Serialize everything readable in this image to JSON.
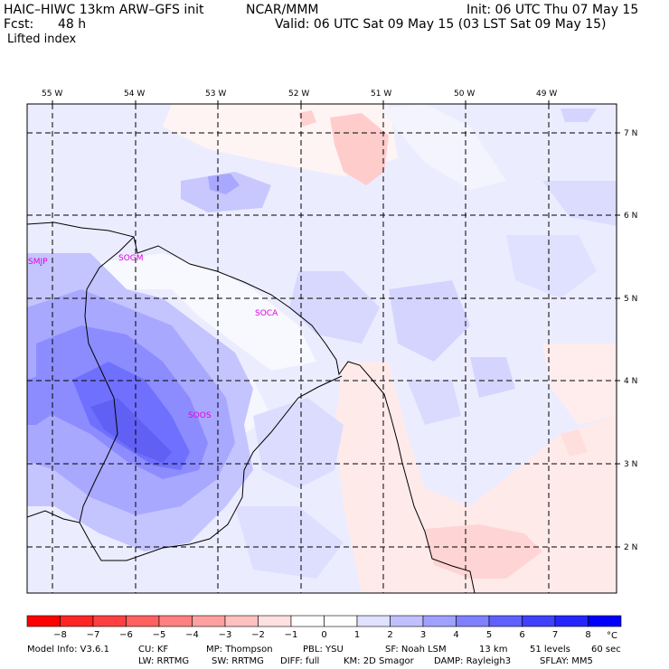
{
  "header": {
    "model": "HAIC–HIWC 13km ARW–GFS init",
    "org": "NCAR/MMM",
    "init": "Init: 06 UTC Thu 07 May 15",
    "fcst_label": "Fcst:",
    "fcst_value": "48 h",
    "valid": "Valid: 06 UTC Sat 09 May 15 (03 LST Sat 09 May 15)",
    "field": "Lifted index"
  },
  "map": {
    "lon_labels": [
      "55 W",
      "54 W",
      "53 W",
      "52 W",
      "51 W",
      "50 W",
      "49 W"
    ],
    "lat_labels": [
      "7 N",
      "6 N",
      "5 N",
      "4 N",
      "3 N",
      "2 N"
    ],
    "stations": [
      "SMJP",
      "SOGM",
      "SOCA",
      "SOOS"
    ]
  },
  "colorbar": {
    "unit": "°C",
    "ticks": [
      "−8",
      "−7",
      "−6",
      "−5",
      "−4",
      "−3",
      "−2",
      "−1",
      "0",
      "1",
      "2",
      "3",
      "4",
      "5",
      "6",
      "7",
      "8"
    ],
    "colors": [
      "#ff0000",
      "#ff2525",
      "#ff4040",
      "#ff6060",
      "#ff8080",
      "#ffa0a0",
      "#ffc0c0",
      "#ffe0e0",
      "#ffffff",
      "#ffffff",
      "#e0e0ff",
      "#c0c0ff",
      "#a0a0ff",
      "#8080ff",
      "#6060ff",
      "#4040ff",
      "#2525ff",
      "#0000ff"
    ]
  },
  "footer": {
    "line1": [
      "Model Info: V3.6.1",
      "CU: KF",
      "MP: Thompson",
      "PBL: YSU",
      "SF: Noah LSM",
      "13 km",
      "51 levels",
      "60 sec"
    ],
    "line2": [
      "LW: RRTMG",
      "SW: RRTMG",
      "DIFF: full",
      "KM: 2D Smagor",
      "DAMP: Rayleigh3",
      "SFLAY: MM5"
    ]
  }
}
